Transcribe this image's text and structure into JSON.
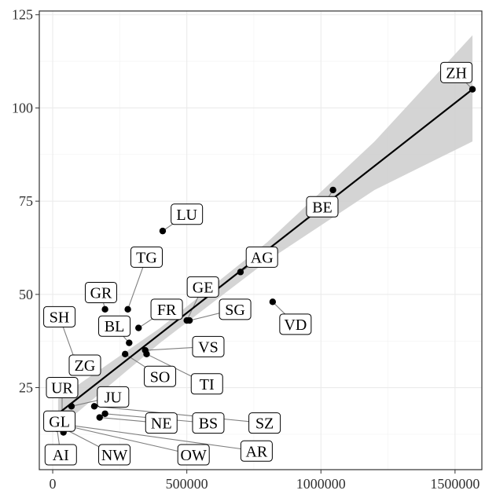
{
  "chart_data": {
    "type": "scatter",
    "title": "",
    "xlabel": "",
    "ylabel": "",
    "xlim": [
      -50000,
      1600000
    ],
    "ylim": [
      3,
      126
    ],
    "x_ticks": [
      0,
      500000,
      1000000,
      1500000
    ],
    "x_tick_labels": [
      "0",
      "500000",
      "1000000",
      "1500000"
    ],
    "y_ticks": [
      25,
      50,
      75,
      100,
      125
    ],
    "y_tick_labels": [
      "25",
      "50",
      "75",
      "100",
      "125"
    ],
    "grid": true,
    "points": [
      {
        "label": "ZH",
        "x": 1565000,
        "y": 105,
        "label_at": [
          1505000,
          109.5
        ]
      },
      {
        "label": "BE",
        "x": 1045000,
        "y": 78,
        "label_at": [
          1005000,
          73.5
        ]
      },
      {
        "label": "LU",
        "x": 410000,
        "y": 67,
        "label_at": [
          500000,
          71.5
        ]
      },
      {
        "label": "AG",
        "x": 700000,
        "y": 56,
        "label_at": [
          780000,
          60
        ]
      },
      {
        "label": "TG",
        "x": 280000,
        "y": 46,
        "label_at": [
          350000,
          60
        ]
      },
      {
        "label": "GE",
        "x": 500000,
        "y": 43,
        "label_at": [
          560000,
          52
        ]
      },
      {
        "label": "GR",
        "x": 195000,
        "y": 46,
        "label_at": [
          180000,
          50.5
        ]
      },
      {
        "label": "FR",
        "x": 320000,
        "y": 41,
        "label_at": [
          425000,
          46
        ]
      },
      {
        "label": "SG",
        "x": 510000,
        "y": 43,
        "label_at": [
          680000,
          46
        ]
      },
      {
        "label": "VD",
        "x": 820000,
        "y": 48,
        "label_at": [
          905000,
          42
        ]
      },
      {
        "label": "SH",
        "x": 80000,
        "y": 33,
        "label_at": [
          25000,
          44
        ]
      },
      {
        "label": "BL",
        "x": 285000,
        "y": 37,
        "label_at": [
          230000,
          41.5
        ]
      },
      {
        "label": "VS",
        "x": 345000,
        "y": 35,
        "label_at": [
          580000,
          36
        ]
      },
      {
        "label": "ZG",
        "x": 120000,
        "y": 31,
        "label_at": [
          120000,
          31
        ]
      },
      {
        "label": "SO",
        "x": 270000,
        "y": 34,
        "label_at": [
          400000,
          28
        ]
      },
      {
        "label": "TI",
        "x": 350000,
        "y": 34,
        "label_at": [
          575000,
          26
        ]
      },
      {
        "label": "UR",
        "x": 35000,
        "y": 18,
        "label_at": [
          35000,
          25
        ]
      },
      {
        "label": "JU",
        "x": 70000,
        "y": 20,
        "label_at": [
          225000,
          22.5
        ]
      },
      {
        "label": "GL",
        "x": 40000,
        "y": 13,
        "label_at": [
          25000,
          16
        ]
      },
      {
        "label": "NE",
        "x": 175000,
        "y": 17,
        "label_at": [
          405000,
          15.5
        ]
      },
      {
        "label": "BS",
        "x": 195000,
        "y": 18,
        "label_at": [
          580000,
          15.5
        ]
      },
      {
        "label": "SZ",
        "x": 155000,
        "y": 20,
        "label_at": [
          790000,
          15.5
        ]
      },
      {
        "label": "AI",
        "x": 16000,
        "y": 14,
        "label_at": [
          30000,
          7
        ]
      },
      {
        "label": "NW",
        "x": 42000,
        "y": 14,
        "label_at": [
          230000,
          7
        ]
      },
      {
        "label": "OW",
        "x": 37000,
        "y": 15,
        "label_at": [
          525000,
          7
        ]
      },
      {
        "label": "AR",
        "x": 55000,
        "y": 15,
        "label_at": [
          760000,
          8
        ]
      }
    ],
    "fit_line": {
      "x": [
        20000,
        1565000
      ],
      "y": [
        18,
        105
      ]
    },
    "confidence_band": [
      {
        "x": 20000,
        "lo": 14,
        "hi": 22
      },
      {
        "x": 400000,
        "lo": 37,
        "hi": 41
      },
      {
        "x": 800000,
        "lo": 59,
        "hi": 64
      },
      {
        "x": 1200000,
        "lo": 78,
        "hi": 91
      },
      {
        "x": 1565000,
        "lo": 91,
        "hi": 119.5
      }
    ],
    "colors": {
      "point": "#000000",
      "fit": "#000000",
      "band": "#cccccc",
      "grid": "#ebebeb",
      "border": "#333333"
    }
  }
}
